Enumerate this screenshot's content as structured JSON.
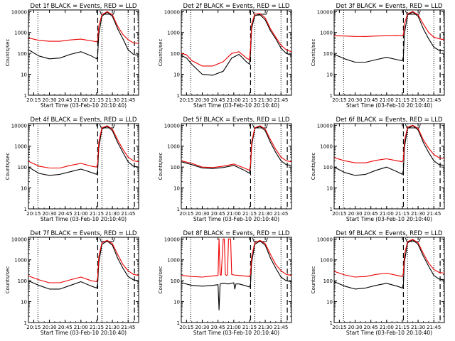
{
  "chart_data": {
    "type": "line",
    "y_scale": "log",
    "ylim": [
      1,
      12000
    ],
    "y_ticks": [
      1,
      10,
      100,
      1000,
      10000
    ],
    "y_tick_labels": [
      "1",
      "10",
      "100",
      "1000",
      "10000"
    ],
    "x_range_minutes_after_start": [
      0,
      105
    ],
    "x_tick_offsets_min": [
      5,
      20,
      35,
      50,
      65,
      80,
      95
    ],
    "x_tick_labels": [
      "20:15",
      "20:30",
      "20:45",
      "21:00",
      "21:15",
      "21:30",
      "21:45"
    ],
    "xlabel": "Start Time (03-Feb-10 20:10:40)",
    "ylabel": "Counts/sec",
    "dotted_vlines_min": [
      9,
      70,
      95
    ],
    "dashed_vlines_min": [
      66,
      101
    ],
    "grid": false,
    "panels": [
      {
        "title": "Det 1f BLACK = Events, RED = LLD",
        "series": [
          {
            "color": "#000000",
            "x": [
              0,
              10,
              20,
              30,
              40,
              50,
              60,
              65,
              66,
              67,
              70,
              75,
              80,
              85,
              90,
              95,
              100,
              105
            ],
            "values": [
              150,
              75,
              55,
              60,
              90,
              120,
              75,
              55,
              80,
              800,
              6000,
              9500,
              6000,
              1500,
              500,
              150,
              90,
              80
            ]
          },
          {
            "color": "#ee0000",
            "x": [
              0,
              10,
              20,
              30,
              40,
              50,
              60,
              65,
              66,
              67,
              70,
              75,
              80,
              85,
              90,
              95,
              100,
              105
            ],
            "values": [
              550,
              420,
              380,
              380,
              440,
              480,
              400,
              360,
              420,
              2000,
              7000,
              10000,
              7000,
              2000,
              800,
              450,
              320,
              300
            ]
          }
        ]
      },
      {
        "title": "Det 2f BLACK = Events, RED = LLD",
        "series": [
          {
            "color": "#000000",
            "x": [
              0,
              5,
              10,
              20,
              30,
              40,
              48,
              55,
              62,
              65,
              66,
              67,
              70,
              75,
              80,
              85,
              90,
              95,
              100,
              105
            ],
            "values": [
              80,
              60,
              30,
              10,
              9,
              14,
              60,
              90,
              40,
              30,
              100,
              1500,
              6500,
              7000,
              4000,
              1200,
              500,
              180,
              100,
              80
            ]
          },
          {
            "color": "#ee0000",
            "x": [
              0,
              5,
              10,
              20,
              30,
              40,
              48,
              55,
              62,
              65,
              66,
              67,
              70,
              75,
              80,
              85,
              90,
              95,
              100,
              105
            ],
            "values": [
              100,
              85,
              45,
              25,
              25,
              40,
              100,
              120,
              60,
              50,
              200,
              2500,
              7500,
              8000,
              5000,
              1500,
              600,
              250,
              150,
              120
            ]
          }
        ]
      },
      {
        "title": "Det 3f BLACK = Events, RED = LLD",
        "series": [
          {
            "color": "#000000",
            "x": [
              0,
              10,
              20,
              30,
              40,
              50,
              60,
              65,
              66,
              67,
              70,
              75,
              80,
              85,
              90,
              95,
              100,
              105
            ],
            "values": [
              90,
              55,
              38,
              38,
              50,
              65,
              50,
              45,
              70,
              900,
              7000,
              9500,
              6000,
              1500,
              500,
              200,
              140,
              130
            ]
          },
          {
            "color": "#ee0000",
            "x": [
              0,
              10,
              20,
              30,
              40,
              50,
              60,
              65,
              66,
              67,
              70,
              75,
              80,
              85,
              90,
              95,
              100,
              105
            ],
            "values": [
              700,
              680,
              650,
              640,
              680,
              700,
              720,
              700,
              750,
              2500,
              8000,
              10000,
              7000,
              2500,
              1000,
              600,
              500,
              450
            ]
          }
        ]
      },
      {
        "title": "Det 4f BLACK = Events, RED = LLD",
        "series": [
          {
            "color": "#000000",
            "x": [
              0,
              10,
              20,
              30,
              40,
              50,
              60,
              65,
              66,
              67,
              70,
              75,
              80,
              85,
              90,
              95,
              100,
              105
            ],
            "values": [
              100,
              50,
              40,
              45,
              60,
              80,
              55,
              45,
              70,
              800,
              6500,
              9000,
              5500,
              1500,
              500,
              180,
              110,
              100
            ]
          },
          {
            "color": "#ee0000",
            "x": [
              0,
              10,
              20,
              30,
              40,
              50,
              60,
              65,
              66,
              67,
              70,
              75,
              80,
              85,
              90,
              95,
              100,
              105
            ],
            "values": [
              190,
              110,
              90,
              90,
              120,
              150,
              110,
              100,
              150,
              1500,
              7500,
              9500,
              6500,
              2000,
              700,
              300,
              200,
              180
            ]
          }
        ]
      },
      {
        "title": "Det 5f BLACK = Events, RED = LLD",
        "series": [
          {
            "color": "#000000",
            "x": [
              0,
              10,
              20,
              30,
              40,
              50,
              60,
              65,
              66,
              67,
              70,
              75,
              80,
              85,
              90,
              95,
              100,
              105
            ],
            "values": [
              180,
              130,
              90,
              85,
              95,
              120,
              70,
              50,
              100,
              1000,
              7000,
              9000,
              5500,
              1500,
              500,
              200,
              130,
              120
            ]
          },
          {
            "color": "#ee0000",
            "x": [
              0,
              10,
              20,
              30,
              40,
              50,
              60,
              65,
              66,
              67,
              70,
              75,
              80,
              85,
              90,
              95,
              100,
              105
            ],
            "values": [
              200,
              150,
              100,
              95,
              110,
              140,
              90,
              70,
              130,
              1500,
              7500,
              9500,
              6500,
              2000,
              700,
              300,
              200,
              180
            ]
          }
        ]
      },
      {
        "title": "Det 6f BLACK = Events, RED = LLD",
        "series": [
          {
            "color": "#000000",
            "x": [
              0,
              10,
              20,
              30,
              40,
              50,
              60,
              65,
              66,
              67,
              70,
              75,
              80,
              85,
              90,
              95,
              100,
              105
            ],
            "values": [
              100,
              55,
              40,
              45,
              70,
              100,
              60,
              45,
              70,
              900,
              7000,
              9500,
              6000,
              1500,
              500,
              200,
              130,
              120
            ]
          },
          {
            "color": "#ee0000",
            "x": [
              0,
              10,
              20,
              30,
              40,
              50,
              60,
              65,
              66,
              67,
              70,
              75,
              80,
              85,
              90,
              95,
              100,
              105
            ],
            "values": [
              280,
              200,
              160,
              160,
              210,
              250,
              200,
              180,
              230,
              1800,
              8000,
              10000,
              7000,
              2000,
              800,
              400,
              280,
              260
            ]
          }
        ]
      },
      {
        "title": "Det 7f BLACK = Events, RED = LLD",
        "series": [
          {
            "color": "#000000",
            "x": [
              0,
              10,
              20,
              30,
              40,
              50,
              60,
              65,
              66,
              67,
              70,
              75,
              80,
              85,
              90,
              95,
              100,
              105
            ],
            "values": [
              100,
              60,
              40,
              40,
              60,
              90,
              55,
              45,
              70,
              700,
              5500,
              8000,
              5000,
              1200,
              400,
              160,
              110,
              100
            ]
          },
          {
            "color": "#ee0000",
            "x": [
              0,
              10,
              20,
              30,
              40,
              50,
              60,
              65,
              66,
              67,
              70,
              75,
              80,
              85,
              90,
              95,
              100,
              105
            ],
            "values": [
              170,
              110,
              80,
              80,
              110,
              150,
              100,
              90,
              140,
              1400,
              6500,
              8500,
              6000,
              1800,
              600,
              300,
              200,
              180
            ]
          }
        ]
      },
      {
        "title": "Det 8f BLACK = Events, RED = LLD",
        "series": [
          {
            "color": "#000000",
            "x": [
              0,
              10,
              20,
              30,
              35,
              36,
              37,
              40,
              45,
              50,
              51,
              52,
              55,
              60,
              65,
              66,
              67,
              70,
              75,
              80,
              85,
              90,
              95,
              100,
              105
            ],
            "values": [
              80,
              60,
              55,
              60,
              65,
              4,
              70,
              75,
              70,
              80,
              40,
              70,
              70,
              60,
              50,
              70,
              700,
              5500,
              8000,
              5000,
              1200,
              400,
              150,
              100,
              90
            ]
          },
          {
            "color": "#ee0000",
            "x": [
              0,
              10,
              20,
              30,
              35,
              36,
              37,
              38,
              40,
              41,
              42,
              43,
              44,
              45,
              46,
              47,
              48,
              50,
              55,
              60,
              65,
              66,
              67,
              70,
              75,
              80,
              85,
              90,
              95,
              100,
              105
            ],
            "values": [
              180,
              160,
              150,
              170,
              180,
              10000,
              200,
              180,
              10000,
              10000,
              200,
              180,
              190,
              10000,
              10000,
              10000,
              200,
              190,
              180,
              170,
              160,
              200,
              1400,
              6500,
              8500,
              6000,
              1800,
              600,
              300,
              200,
              180
            ]
          }
        ]
      },
      {
        "title": "Det 9f BLACK = Events, RED = LLD",
        "series": [
          {
            "color": "#000000",
            "x": [
              0,
              10,
              20,
              30,
              40,
              50,
              60,
              65,
              66,
              67,
              70,
              75,
              80,
              85,
              90,
              95,
              100,
              105
            ],
            "values": [
              90,
              55,
              40,
              45,
              60,
              75,
              55,
              45,
              70,
              800,
              6500,
              9000,
              5500,
              1500,
              500,
              180,
              120,
              110
            ]
          },
          {
            "color": "#ee0000",
            "x": [
              0,
              10,
              20,
              30,
              40,
              50,
              60,
              65,
              66,
              67,
              70,
              75,
              80,
              85,
              90,
              95,
              100,
              105
            ],
            "values": [
              280,
              190,
              150,
              160,
              200,
              230,
              180,
              160,
              220,
              1800,
              7500,
              9500,
              6500,
              2000,
              700,
              350,
              250,
              230
            ]
          }
        ]
      }
    ]
  }
}
